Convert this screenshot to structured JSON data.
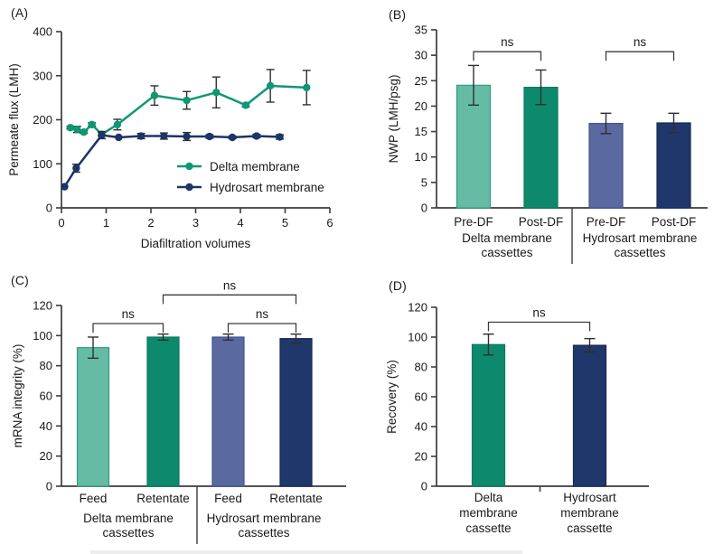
{
  "colors": {
    "axis": "#3c3c3c",
    "text": "#1a1a1a",
    "error_bar": "#2f2f2f",
    "bracket": "#3c3c3c",
    "teal_line": "#0f9774",
    "navy_line": "#1c3468",
    "light_teal_bar": "#66bba4",
    "dark_teal_bar": "#0d8a6d",
    "slate_blue_bar": "#5a6aa0",
    "dark_navy_bar": "#20376b"
  },
  "figure": {
    "panels": [
      {
        "id": "A",
        "label": "(A)"
      },
      {
        "id": "B",
        "label": "(B)"
      },
      {
        "id": "C",
        "label": "(C)"
      },
      {
        "id": "D",
        "label": "(D)"
      }
    ]
  },
  "chart_data": [
    {
      "panel": "A",
      "type": "line",
      "title": "",
      "xlabel": "Diafiltration volumes",
      "ylabel": "Permeate flux (LMH)",
      "xlim": [
        0,
        6
      ],
      "ylim": [
        0,
        400
      ],
      "xticks": [
        0,
        1,
        2,
        3,
        4,
        5,
        6
      ],
      "yticks": [
        0,
        100,
        200,
        300,
        400
      ],
      "grid": "off",
      "legend_position": "inside right-center",
      "series": [
        {
          "name": "Delta membrane",
          "color": "#0f9774",
          "x": [
            0.2,
            0.35,
            0.5,
            0.68,
            0.9,
            1.25,
            2.08,
            2.8,
            3.46,
            4.12,
            4.67,
            5.48
          ],
          "y": [
            182,
            178,
            172,
            189,
            167,
            189,
            255,
            244,
            262,
            233,
            277,
            273
          ],
          "yerr": [
            3,
            7,
            3,
            4,
            4,
            12,
            22,
            20,
            35,
            4,
            37,
            39
          ]
        },
        {
          "name": "Hydrosart membrane",
          "color": "#1c3468",
          "x": [
            0.07,
            0.33,
            0.9,
            1.28,
            1.78,
            2.29,
            2.8,
            3.31,
            3.82,
            4.36,
            4.88
          ],
          "y": [
            48,
            90,
            165,
            160,
            163,
            163,
            162,
            162,
            160,
            163,
            161
          ],
          "yerr": [
            2,
            9,
            8,
            2,
            6,
            7,
            9,
            4,
            3,
            4,
            5
          ]
        }
      ]
    },
    {
      "panel": "B",
      "type": "bar",
      "title": "",
      "xlabel": "",
      "ylabel": "NWP (LMH/psg)",
      "ylim": [
        0,
        35
      ],
      "yticks": [
        0,
        5,
        10,
        15,
        20,
        25,
        30,
        35
      ],
      "grid": "off",
      "categories": [
        "Pre-DF",
        "Post-DF",
        "Pre-DF",
        "Post-DF"
      ],
      "values": [
        24.1,
        23.7,
        16.6,
        16.7
      ],
      "errors": [
        3.9,
        3.4,
        2.0,
        1.9
      ],
      "bar_colors": [
        "#66bba4",
        "#0d8a6d",
        "#5a6aa0",
        "#20376b"
      ],
      "bar_edge_colors": [
        "#2f9e81",
        "#087a60",
        "#41538f",
        "#152a52"
      ],
      "groups": [
        {
          "label_lines": [
            "Delta membrane",
            "cassettes"
          ],
          "spans": [
            0,
            1
          ]
        },
        {
          "label_lines": [
            "Hydrosart membrane",
            "cassettes"
          ],
          "spans": [
            2,
            3
          ]
        }
      ],
      "annotations": [
        {
          "type": "bracket",
          "from": 0,
          "to": 1,
          "label": "ns",
          "y": 30.7
        },
        {
          "type": "bracket",
          "from": 2,
          "to": 3,
          "label": "ns",
          "y": 30.7
        }
      ]
    },
    {
      "panel": "C",
      "type": "bar",
      "title": "",
      "xlabel": "",
      "ylabel": "mRNA integrity (%)",
      "ylim": [
        0,
        120
      ],
      "yticks": [
        0,
        20,
        40,
        60,
        80,
        100,
        120
      ],
      "grid": "off",
      "categories": [
        "Feed",
        "Retentate",
        "Feed",
        "Retentate"
      ],
      "values": [
        92,
        99,
        99,
        98
      ],
      "errors": [
        7,
        2,
        2,
        3
      ],
      "bar_colors": [
        "#66bba4",
        "#0d8a6d",
        "#5a6aa0",
        "#20376b"
      ],
      "bar_edge_colors": [
        "#2f9e81",
        "#087a60",
        "#41538f",
        "#152a52"
      ],
      "groups": [
        {
          "label_lines": [
            "Delta membrane",
            "cassettes"
          ],
          "spans": [
            0,
            1
          ]
        },
        {
          "label_lines": [
            "Hydrosart membrane",
            "cassettes"
          ],
          "spans": [
            2,
            3
          ]
        }
      ],
      "annotations": [
        {
          "type": "bracket",
          "from": 0,
          "to": 1,
          "label": "ns",
          "y": 108
        },
        {
          "type": "bracket",
          "from": 2,
          "to": 3,
          "label": "ns",
          "y": 108
        },
        {
          "type": "bracket",
          "from": 1,
          "to": 3,
          "label": "ns",
          "y": 127
        }
      ]
    },
    {
      "panel": "D",
      "type": "bar",
      "title": "",
      "xlabel": "",
      "ylabel": "Recovery (%)",
      "ylim": [
        0,
        120
      ],
      "yticks": [
        0,
        20,
        40,
        60,
        80,
        100,
        120
      ],
      "grid": "off",
      "categories": [
        [
          "Delta",
          "membrane",
          "cassette"
        ],
        [
          "Hydrosart",
          "membrane",
          "cassette"
        ]
      ],
      "values": [
        95,
        94.5
      ],
      "errors": [
        7,
        4.5
      ],
      "bar_colors": [
        "#0d8a6d",
        "#20376b"
      ],
      "bar_edge_colors": [
        "#087a60",
        "#152a52"
      ],
      "groups": [],
      "annotations": [
        {
          "type": "bracket",
          "from": 0,
          "to": 1,
          "label": "ns",
          "y": 110
        }
      ]
    }
  ]
}
